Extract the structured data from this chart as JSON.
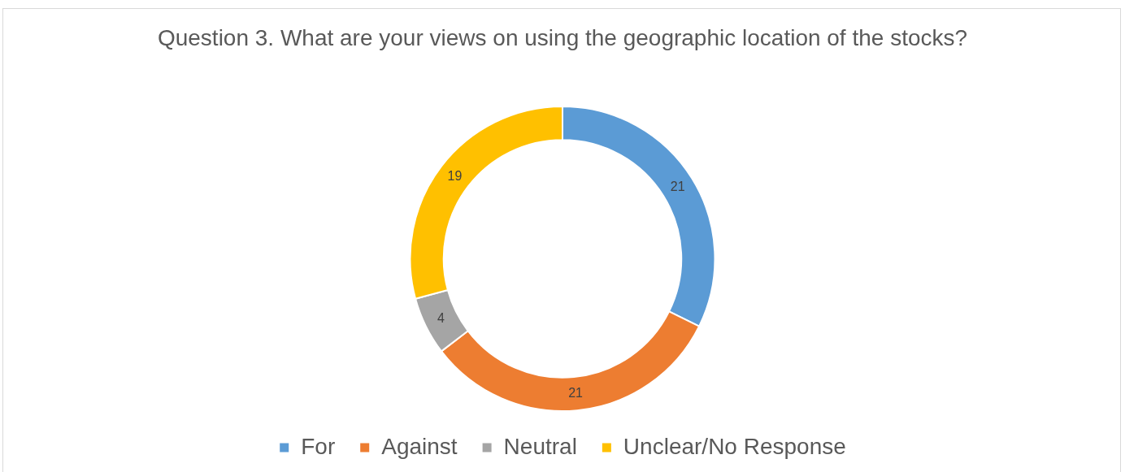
{
  "chart_data": {
    "type": "donut",
    "title": "Question 3. What are your views on using the geographic location of the stocks?",
    "categories": [
      "For",
      "Against",
      "Neutral",
      "Unclear/No Response"
    ],
    "values": [
      21,
      21,
      4,
      19
    ],
    "colors": [
      "#5b9bd5",
      "#ed7d31",
      "#a5a5a5",
      "#ffc000"
    ],
    "data_labels": true,
    "legend": "bottom"
  }
}
